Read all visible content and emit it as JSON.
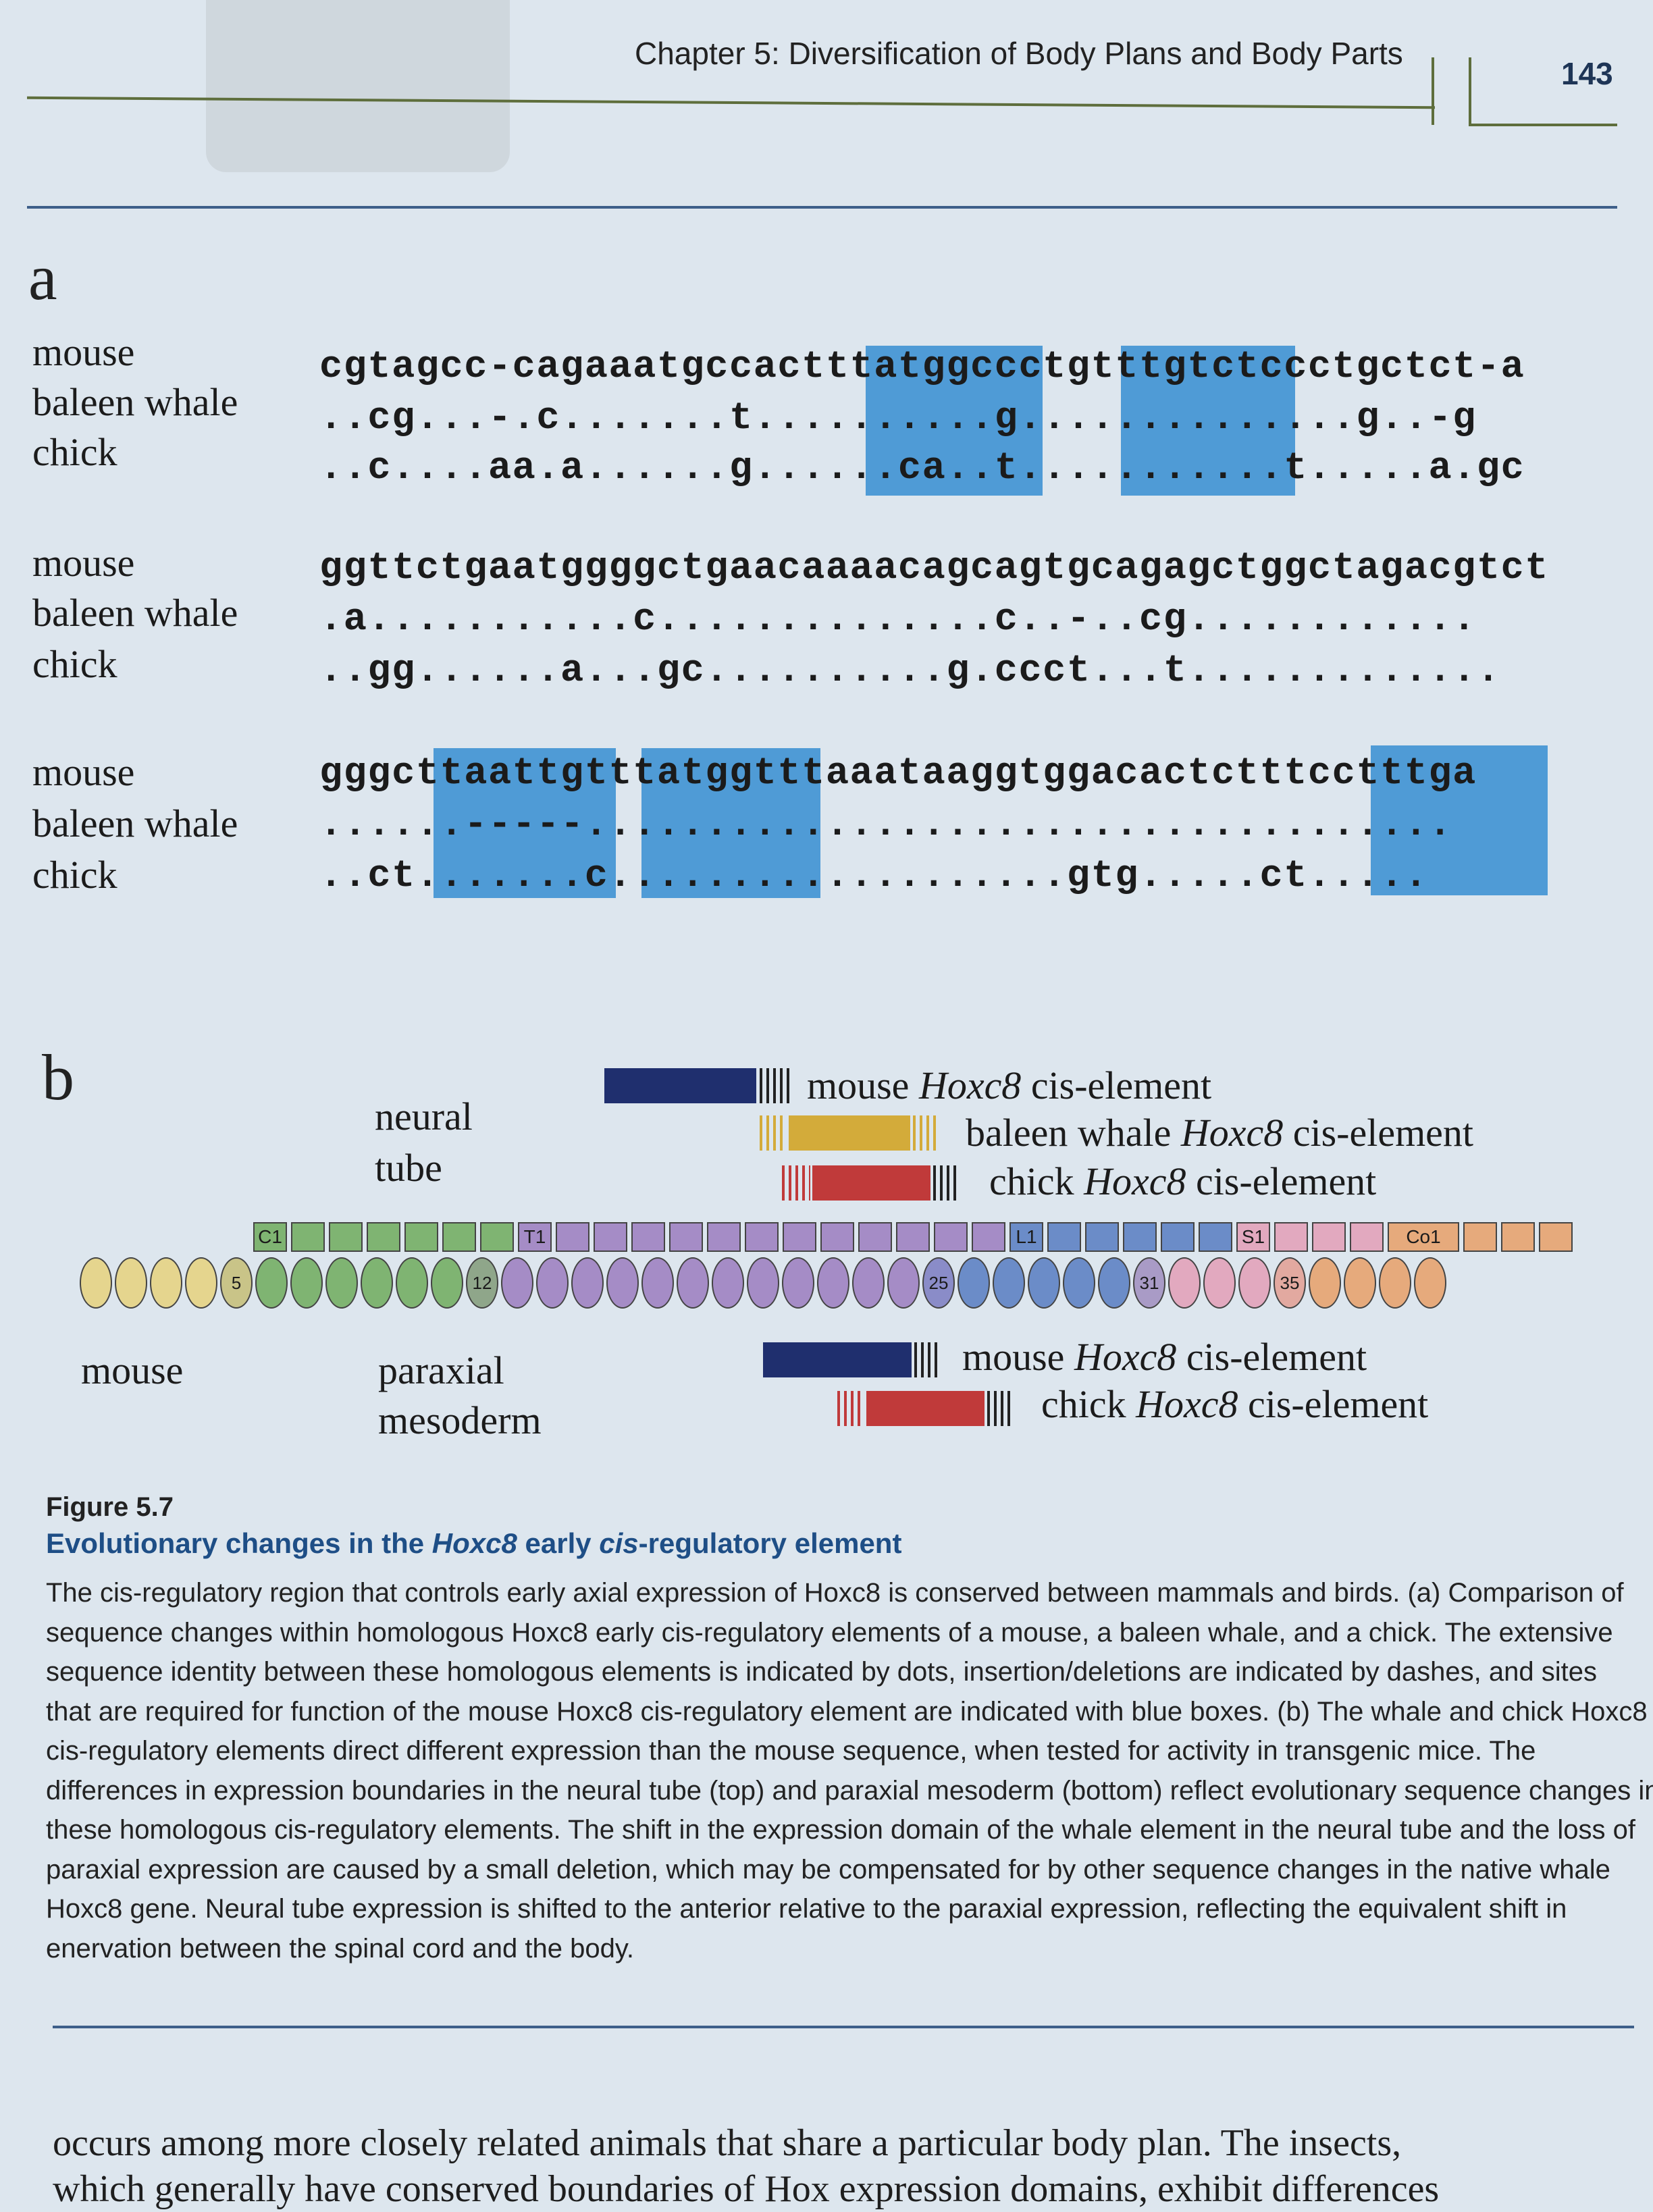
{
  "header": {
    "chapter_title": "Chapter 5: Diversification of Body Plans and Body Parts",
    "page_number": "143"
  },
  "panel_a": {
    "letter": "a",
    "blocks": [
      {
        "rows": [
          {
            "label": "mouse",
            "seq": "cgtagcc-cagaaatgccactttatggccctgtttgtctccctgctct-a"
          },
          {
            "label": "baleen whale",
            "seq": "..cg...-.c.......t..........g..............g..-g"
          },
          {
            "label": "chick",
            "seq": "..c....aa.a......g......ca..t...........t.....a.gc"
          }
        ]
      },
      {
        "rows": [
          {
            "label": "mouse",
            "seq": "ggttctgaatggggctgaacaaaacagcagtgcagagctggctagacgtct"
          },
          {
            "label": "baleen whale",
            "seq": ".a...........c..............c..-..cg............"
          },
          {
            "label": "chick",
            "seq": "..gg......a...gc..........g.ccct...t............."
          }
        ]
      },
      {
        "rows": [
          {
            "label": "mouse",
            "seq": "gggcttaattgtttatggtttaaataaggtggacactctttcctttga"
          },
          {
            "label": "baleen whale",
            "seq": "......-----...................................."
          },
          {
            "label": "chick",
            "seq": "..ct.......c...................gtg.....ct....."
          }
        ]
      }
    ]
  },
  "panel_b": {
    "letter": "b",
    "neural_tube_label_1": "neural",
    "neural_tube_label_2": "tube",
    "mouse_label": "mouse",
    "paraxial_label_1": "paraxial",
    "paraxial_label_2": "mesoderm",
    "legend_top": [
      {
        "species": "mouse",
        "gene": "Hoxc8",
        "suffix": "cis-element",
        "color": "#1f2f6e"
      },
      {
        "species": "baleen whale",
        "gene": "Hoxc8",
        "suffix": "cis-element",
        "color": "#d3ab3a"
      },
      {
        "species": "chick",
        "gene": "Hoxc8",
        "suffix": "cis-element",
        "color": "#c03a3a"
      }
    ],
    "legend_bottom": [
      {
        "species": "mouse",
        "gene": "Hoxc8",
        "suffix": "cis-element",
        "color": "#1f2f6e"
      },
      {
        "species": "chick",
        "gene": "Hoxc8",
        "suffix": "cis-element",
        "color": "#c03a3a"
      }
    ],
    "vertebra_labels": {
      "c1": "C1",
      "t1": "T1",
      "l1": "L1",
      "s1": "S1",
      "co1": "Co1"
    },
    "disc_labels": {
      "d5": "5",
      "d12": "12",
      "d25": "25",
      "d31": "31",
      "d35": "35"
    },
    "colors": {
      "cervical": "#7fb472",
      "thoracic": "#a58cc6",
      "lumbar": "#6b8cc8",
      "sacral": "#e2a9bf",
      "coccygeal": "#e6aa7c",
      "head": "#e5d58e"
    }
  },
  "caption": {
    "figure_label": "Figure 5.7",
    "title_pre": "Evolutionary changes in the ",
    "title_gene": "Hoxc8",
    "title_mid": " early ",
    "title_cis": "cis",
    "title_post": "-regulatory element",
    "lines": [
      "The cis-regulatory region that controls early axial expression of Hoxc8 is conserved between mammals and birds. (a) Comparison of",
      "sequence changes within homologous Hoxc8 early cis-regulatory elements of a mouse, a baleen whale, and a chick. The extensive",
      "sequence identity between these homologous elements is indicated by dots, insertion/deletions are indicated by dashes, and sites",
      "that are required for function of the mouse Hoxc8 cis-regulatory element are indicated with blue boxes. (b) The whale and chick Hoxc8",
      "cis-regulatory elements direct different expression than the mouse sequence, when tested for activity in transgenic mice. The",
      "differences in expression boundaries in the neural tube (top) and paraxial mesoderm (bottom) reflect evolutionary sequence changes in",
      "these homologous cis-regulatory elements. The shift in the expression domain of the whale element in the neural tube and the loss of",
      "paraxial expression are caused by a small deletion, which may be compensated for by other sequence changes in the native whale",
      "Hoxc8 gene. Neural tube expression is shifted to the anterior relative to the paraxial expression, reflecting the equivalent shift in",
      "enervation between the spinal cord and the body."
    ]
  },
  "body_text": {
    "line1": "occurs among more closely related animals that share a particular body plan. The insects,",
    "line2": "which generally have conserved boundaries of Hox expression domains, exhibit differences"
  }
}
